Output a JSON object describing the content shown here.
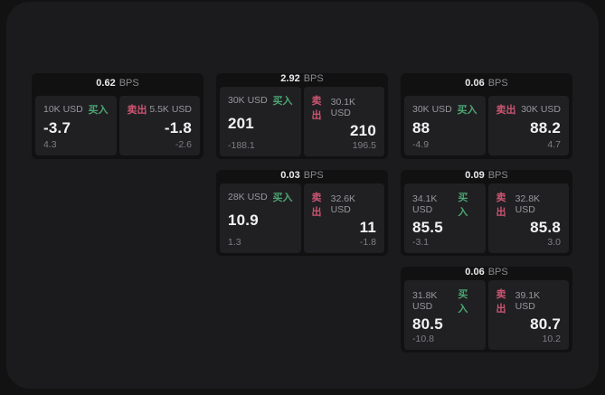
{
  "labels": {
    "bps_unit": "BPS",
    "buy": "买入",
    "sell": "卖出"
  },
  "colors": {
    "buy_green": "#4ba571",
    "sell_red": "#cb5570",
    "outer_bg": "#121213",
    "panel_bg": "#1b1b1d",
    "card_bg": "#111112",
    "tile_bg": "#202023"
  },
  "cards": [
    {
      "bps": "0.62",
      "col": 1,
      "row": 1,
      "buy": {
        "amount": "10K USD",
        "value": "-3.7",
        "sub": "4.3"
      },
      "sell": {
        "amount": "5.5K USD",
        "value": "-1.8",
        "sub": "-2.6"
      }
    },
    {
      "bps": "2.92",
      "col": 2,
      "row": 1,
      "buy": {
        "amount": "30K USD",
        "value": "201",
        "sub": "-188.1"
      },
      "sell": {
        "amount": "30.1K USD",
        "value": "210",
        "sub": "196.5"
      }
    },
    {
      "bps": "0.06",
      "col": 3,
      "row": 1,
      "buy": {
        "amount": "30K USD",
        "value": "88",
        "sub": "-4.9"
      },
      "sell": {
        "amount": "30K USD",
        "value": "88.2",
        "sub": "4.7"
      }
    },
    {
      "bps": "0.03",
      "col": 2,
      "row": 2,
      "buy": {
        "amount": "28K USD",
        "value": "10.9",
        "sub": "1.3"
      },
      "sell": {
        "amount": "32.6K USD",
        "value": "11",
        "sub": "-1.8"
      }
    },
    {
      "bps": "0.09",
      "col": 3,
      "row": 2,
      "buy": {
        "amount": "34.1K USD",
        "value": "85.5",
        "sub": "-3.1"
      },
      "sell": {
        "amount": "32.8K USD",
        "value": "85.8",
        "sub": "3.0"
      }
    },
    {
      "bps": "0.06",
      "col": 3,
      "row": 3,
      "buy": {
        "amount": "31.8K USD",
        "value": "80.5",
        "sub": "-10.8"
      },
      "sell": {
        "amount": "39.1K USD",
        "value": "80.7",
        "sub": "10.2"
      }
    }
  ]
}
